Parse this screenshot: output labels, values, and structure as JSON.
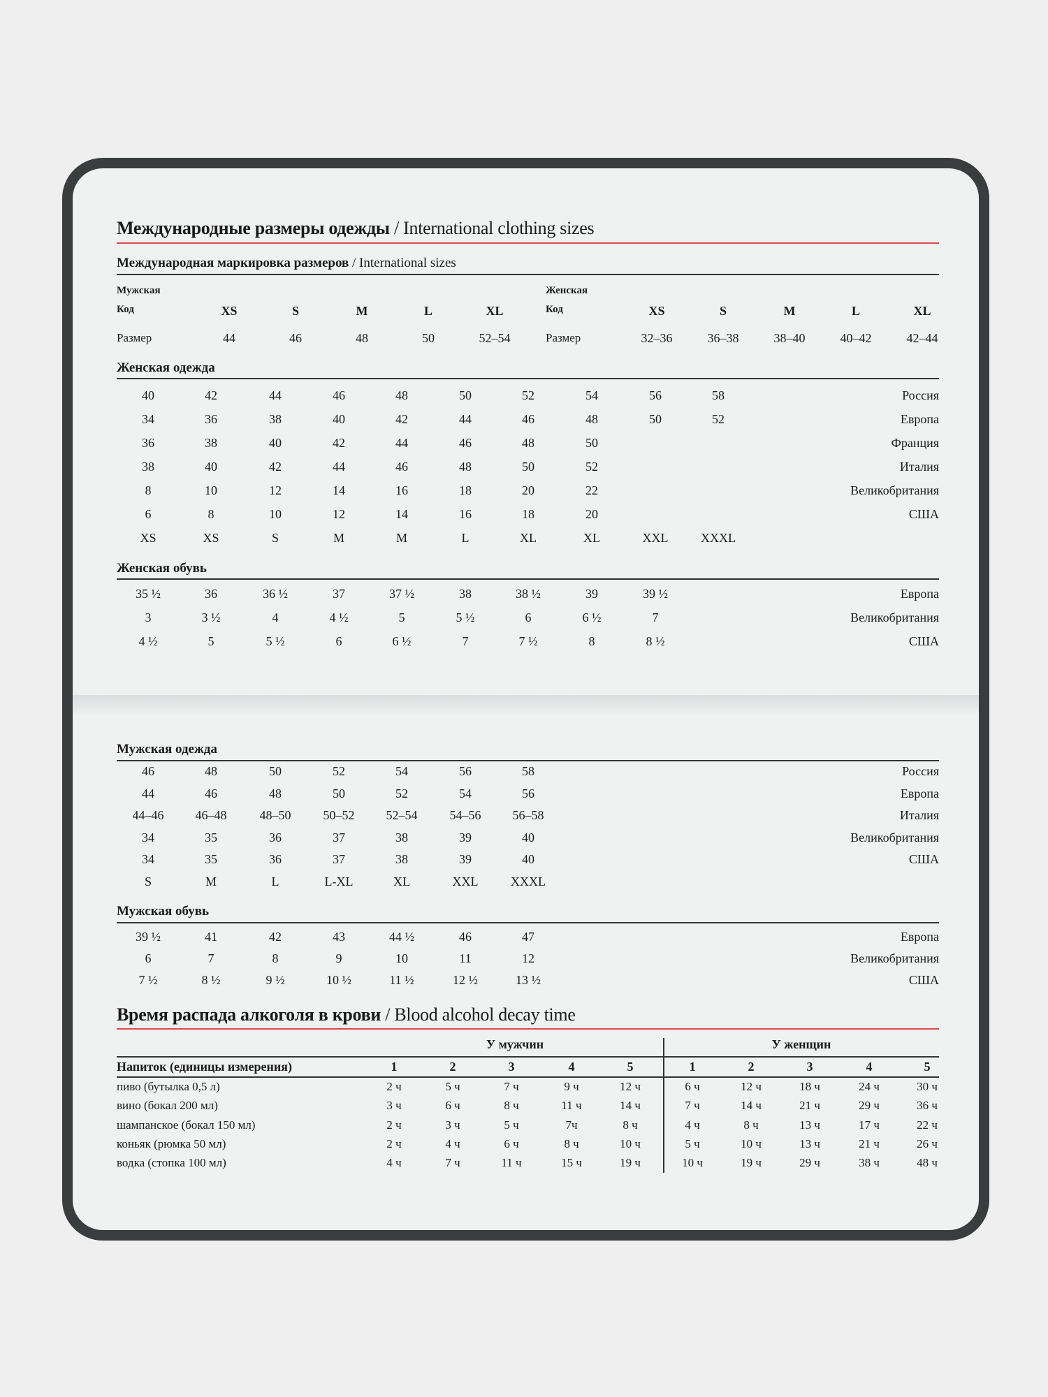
{
  "clothing": {
    "title_ru": "Международные размеры одежды",
    "title_en": "/ International clothing sizes",
    "intl": {
      "title_ru": "Международная маркировка размеров",
      "title_en": "/ International sizes",
      "men": {
        "label": "Мужская",
        "code_label": "Код",
        "size_label": "Размер",
        "codes": [
          "XS",
          "S",
          "M",
          "L",
          "XL"
        ],
        "sizes": [
          "44",
          "46",
          "48",
          "50",
          "52–54"
        ]
      },
      "women": {
        "label": "Женская",
        "code_label": "Код",
        "size_label": "Размер",
        "codes": [
          "XS",
          "S",
          "M",
          "L",
          "XL"
        ],
        "sizes": [
          "32–36",
          "36–38",
          "38–40",
          "40–42",
          "42–44"
        ]
      }
    },
    "women_clothes": {
      "title": "Женская одежда",
      "rows": [
        {
          "values": [
            "40",
            "42",
            "44",
            "46",
            "48",
            "50",
            "52",
            "54",
            "56",
            "58"
          ],
          "country": "Россия"
        },
        {
          "values": [
            "34",
            "36",
            "38",
            "40",
            "42",
            "44",
            "46",
            "48",
            "50",
            "52"
          ],
          "country": "Европа"
        },
        {
          "values": [
            "36",
            "38",
            "40",
            "42",
            "44",
            "46",
            "48",
            "50"
          ],
          "country": "Франция"
        },
        {
          "values": [
            "38",
            "40",
            "42",
            "44",
            "46",
            "48",
            "50",
            "52"
          ],
          "country": "Италия"
        },
        {
          "values": [
            "8",
            "10",
            "12",
            "14",
            "16",
            "18",
            "20",
            "22"
          ],
          "country": "Великобритания"
        },
        {
          "values": [
            "6",
            "8",
            "10",
            "12",
            "14",
            "16",
            "18",
            "20"
          ],
          "country": "США"
        },
        {
          "values": [
            "XS",
            "XS",
            "S",
            "M",
            "M",
            "L",
            "XL",
            "XL",
            "XXL",
            "XXXL"
          ],
          "country": ""
        }
      ]
    },
    "women_shoes": {
      "title": "Женская обувь",
      "rows": [
        {
          "values": [
            "35 ½",
            "36",
            "36 ½",
            "37",
            "37 ½",
            "38",
            "38 ½",
            "39",
            "39 ½"
          ],
          "country": "Европа"
        },
        {
          "values": [
            "3",
            "3 ½",
            "4",
            "4 ½",
            "5",
            "5 ½",
            "6",
            "6 ½",
            "7"
          ],
          "country": "Великобритания"
        },
        {
          "values": [
            "4 ½",
            "5",
            "5 ½",
            "6",
            "6 ½",
            "7",
            "7 ½",
            "8",
            "8 ½"
          ],
          "country": "США"
        }
      ]
    },
    "men_clothes": {
      "title": "Мужская одежда",
      "rows": [
        {
          "values": [
            "46",
            "48",
            "50",
            "52",
            "54",
            "56",
            "58"
          ],
          "country": "Россия"
        },
        {
          "values": [
            "44",
            "46",
            "48",
            "50",
            "52",
            "54",
            "56"
          ],
          "country": "Европа"
        },
        {
          "values": [
            "44–46",
            "46–48",
            "48–50",
            "50–52",
            "52–54",
            "54–56",
            "56–58"
          ],
          "country": "Италия"
        },
        {
          "values": [
            "34",
            "35",
            "36",
            "37",
            "38",
            "39",
            "40"
          ],
          "country": "Великобритания"
        },
        {
          "values": [
            "34",
            "35",
            "36",
            "37",
            "38",
            "39",
            "40"
          ],
          "country": "США"
        },
        {
          "values": [
            "S",
            "M",
            "L",
            "L-XL",
            "XL",
            "XXL",
            "XXXL"
          ],
          "country": ""
        }
      ]
    },
    "men_shoes": {
      "title": "Мужская обувь",
      "rows": [
        {
          "values": [
            "39 ½",
            "41",
            "42",
            "43",
            "44 ½",
            "46",
            "47"
          ],
          "country": "Европа"
        },
        {
          "values": [
            "6",
            "7",
            "8",
            "9",
            "10",
            "11",
            "12"
          ],
          "country": "Великобритания"
        },
        {
          "values": [
            "7 ½",
            "8 ½",
            "9 ½",
            "10 ½",
            "11 ½",
            "12 ½",
            "13 ½"
          ],
          "country": "США"
        }
      ]
    }
  },
  "alcohol": {
    "title_ru": "Время распада алкоголя в крови",
    "title_en": "/ Blood alcohol decay time",
    "men_label": "У мужчин",
    "women_label": "У женщин",
    "drink_header": "Напиток (единицы измерения)",
    "columns": [
      "1",
      "2",
      "3",
      "4",
      "5",
      "1",
      "2",
      "3",
      "4",
      "5"
    ],
    "rows": [
      {
        "drink": "пиво (бутылка 0,5 л)",
        "values": [
          "2 ч",
          "5 ч",
          "7 ч",
          "9 ч",
          "12 ч",
          "6 ч",
          "12 ч",
          "18 ч",
          "24 ч",
          "30 ч"
        ]
      },
      {
        "drink": "вино (бокал 200 мл)",
        "values": [
          "3 ч",
          "6 ч",
          "8 ч",
          "11 ч",
          "14 ч",
          "7 ч",
          "14 ч",
          "21 ч",
          "29 ч",
          "36 ч"
        ]
      },
      {
        "drink": "шампанское (бокал 150 мл)",
        "values": [
          "2 ч",
          "3 ч",
          "5 ч",
          "7ч",
          "8 ч",
          "4 ч",
          "8 ч",
          "13 ч",
          "17 ч",
          "22 ч"
        ]
      },
      {
        "drink": "коньяк (рюмка 50 мл)",
        "values": [
          "2 ч",
          "4 ч",
          "6 ч",
          "8 ч",
          "10 ч",
          "5 ч",
          "10 ч",
          "13 ч",
          "21 ч",
          "26 ч"
        ]
      },
      {
        "drink": "водка (стопка 100 мл)",
        "values": [
          "4 ч",
          "7 ч",
          "11 ч",
          "15 ч",
          "19 ч",
          "10 ч",
          "19 ч",
          "29 ч",
          "38 ч",
          "48 ч"
        ]
      }
    ]
  }
}
